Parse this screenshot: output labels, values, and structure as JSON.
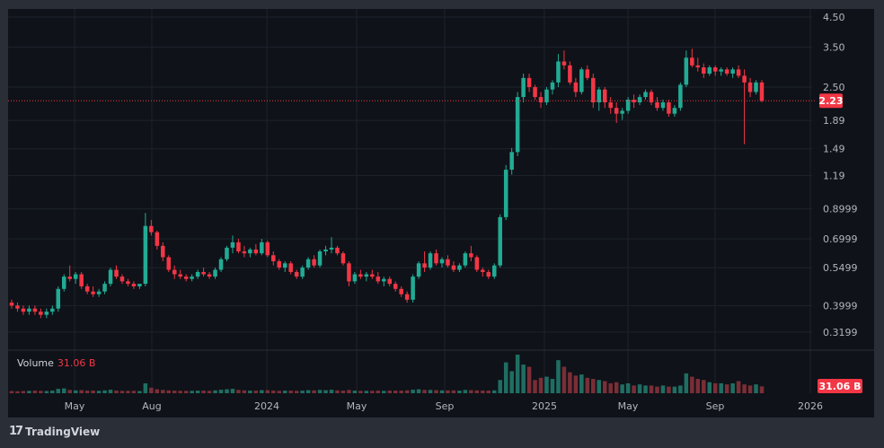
{
  "branding": {
    "logo_text": "TradingView"
  },
  "volume_panel": {
    "label": "Volume",
    "value": "31.06 B",
    "badge": "31.06 B"
  },
  "price_badge": "2.23",
  "colors": {
    "up": "#22ab94",
    "down": "#f23645",
    "up_vol": "#1f6e63",
    "down_vol": "#7a2e36",
    "bg": "#0f1218",
    "grid": "#1e222d",
    "text": "#b2b5be"
  },
  "chart_data": {
    "type": "candlestick",
    "scale": "log",
    "y_ticks": [
      "4.50",
      "3.50",
      "2.50",
      "1.89",
      "1.49",
      "1.19",
      "0.8999",
      "0.6999",
      "0.5499",
      "0.3999",
      "0.3199"
    ],
    "x_ticks": [
      "May",
      "Aug",
      "2024",
      "May",
      "Sep",
      "2025",
      "May",
      "Sep",
      "2026"
    ],
    "last_price": 2.23,
    "candles": [
      [
        0.41,
        0.42,
        0.39,
        0.4
      ],
      [
        0.4,
        0.41,
        0.38,
        0.39
      ],
      [
        0.39,
        0.4,
        0.37,
        0.38
      ],
      [
        0.38,
        0.4,
        0.37,
        0.39
      ],
      [
        0.39,
        0.4,
        0.37,
        0.38
      ],
      [
        0.38,
        0.39,
        0.36,
        0.37
      ],
      [
        0.37,
        0.39,
        0.36,
        0.38
      ],
      [
        0.38,
        0.4,
        0.37,
        0.39
      ],
      [
        0.39,
        0.47,
        0.38,
        0.46
      ],
      [
        0.46,
        0.52,
        0.45,
        0.51
      ],
      [
        0.51,
        0.56,
        0.49,
        0.5
      ],
      [
        0.5,
        0.53,
        0.48,
        0.52
      ],
      [
        0.52,
        0.53,
        0.46,
        0.47
      ],
      [
        0.47,
        0.48,
        0.44,
        0.45
      ],
      [
        0.45,
        0.47,
        0.43,
        0.44
      ],
      [
        0.44,
        0.46,
        0.43,
        0.45
      ],
      [
        0.45,
        0.49,
        0.44,
        0.48
      ],
      [
        0.48,
        0.55,
        0.47,
        0.54
      ],
      [
        0.54,
        0.56,
        0.5,
        0.51
      ],
      [
        0.51,
        0.52,
        0.48,
        0.49
      ],
      [
        0.49,
        0.5,
        0.47,
        0.48
      ],
      [
        0.48,
        0.49,
        0.46,
        0.47
      ],
      [
        0.47,
        0.48,
        0.46,
        0.48
      ],
      [
        0.48,
        0.87,
        0.47,
        0.78
      ],
      [
        0.78,
        0.82,
        0.72,
        0.74
      ],
      [
        0.74,
        0.75,
        0.64,
        0.66
      ],
      [
        0.66,
        0.68,
        0.58,
        0.6
      ],
      [
        0.6,
        0.61,
        0.53,
        0.54
      ],
      [
        0.54,
        0.56,
        0.5,
        0.52
      ],
      [
        0.52,
        0.54,
        0.5,
        0.51
      ],
      [
        0.51,
        0.52,
        0.49,
        0.5
      ],
      [
        0.5,
        0.52,
        0.49,
        0.51
      ],
      [
        0.51,
        0.54,
        0.5,
        0.53
      ],
      [
        0.53,
        0.55,
        0.51,
        0.52
      ],
      [
        0.52,
        0.53,
        0.5,
        0.51
      ],
      [
        0.51,
        0.55,
        0.5,
        0.54
      ],
      [
        0.54,
        0.6,
        0.53,
        0.59
      ],
      [
        0.59,
        0.66,
        0.58,
        0.65
      ],
      [
        0.65,
        0.72,
        0.62,
        0.68
      ],
      [
        0.68,
        0.7,
        0.62,
        0.63
      ],
      [
        0.63,
        0.66,
        0.6,
        0.62
      ],
      [
        0.62,
        0.65,
        0.6,
        0.64
      ],
      [
        0.64,
        0.67,
        0.61,
        0.62
      ],
      [
        0.62,
        0.7,
        0.61,
        0.68
      ],
      [
        0.68,
        0.69,
        0.6,
        0.61
      ],
      [
        0.61,
        0.63,
        0.56,
        0.58
      ],
      [
        0.58,
        0.59,
        0.54,
        0.55
      ],
      [
        0.55,
        0.58,
        0.53,
        0.57
      ],
      [
        0.57,
        0.58,
        0.52,
        0.53
      ],
      [
        0.53,
        0.54,
        0.5,
        0.51
      ],
      [
        0.51,
        0.56,
        0.5,
        0.55
      ],
      [
        0.55,
        0.6,
        0.54,
        0.59
      ],
      [
        0.59,
        0.61,
        0.55,
        0.56
      ],
      [
        0.56,
        0.64,
        0.55,
        0.63
      ],
      [
        0.63,
        0.66,
        0.61,
        0.64
      ],
      [
        0.64,
        0.71,
        0.62,
        0.65
      ],
      [
        0.65,
        0.66,
        0.61,
        0.62
      ],
      [
        0.62,
        0.63,
        0.56,
        0.57
      ],
      [
        0.57,
        0.58,
        0.47,
        0.49
      ],
      [
        0.49,
        0.53,
        0.48,
        0.52
      ],
      [
        0.52,
        0.54,
        0.5,
        0.51
      ],
      [
        0.51,
        0.53,
        0.49,
        0.52
      ],
      [
        0.52,
        0.54,
        0.5,
        0.51
      ],
      [
        0.51,
        0.53,
        0.48,
        0.49
      ],
      [
        0.49,
        0.51,
        0.47,
        0.5
      ],
      [
        0.5,
        0.51,
        0.47,
        0.48
      ],
      [
        0.48,
        0.49,
        0.45,
        0.46
      ],
      [
        0.46,
        0.47,
        0.43,
        0.44
      ],
      [
        0.44,
        0.45,
        0.41,
        0.42
      ],
      [
        0.42,
        0.52,
        0.41,
        0.51
      ],
      [
        0.51,
        0.58,
        0.5,
        0.57
      ],
      [
        0.57,
        0.63,
        0.53,
        0.55
      ],
      [
        0.55,
        0.63,
        0.54,
        0.62
      ],
      [
        0.62,
        0.64,
        0.56,
        0.57
      ],
      [
        0.57,
        0.6,
        0.55,
        0.59
      ],
      [
        0.59,
        0.61,
        0.55,
        0.56
      ],
      [
        0.56,
        0.58,
        0.53,
        0.54
      ],
      [
        0.54,
        0.57,
        0.53,
        0.56
      ],
      [
        0.56,
        0.63,
        0.55,
        0.62
      ],
      [
        0.62,
        0.66,
        0.58,
        0.6
      ],
      [
        0.6,
        0.61,
        0.53,
        0.54
      ],
      [
        0.54,
        0.55,
        0.51,
        0.53
      ],
      [
        0.53,
        0.54,
        0.5,
        0.51
      ],
      [
        0.51,
        0.57,
        0.5,
        0.56
      ],
      [
        0.56,
        0.86,
        0.55,
        0.84
      ],
      [
        0.84,
        1.3,
        0.82,
        1.25
      ],
      [
        1.25,
        1.5,
        1.2,
        1.45
      ],
      [
        1.45,
        2.4,
        1.4,
        2.3
      ],
      [
        2.3,
        2.8,
        2.2,
        2.7
      ],
      [
        2.7,
        2.8,
        2.4,
        2.5
      ],
      [
        2.5,
        2.55,
        2.25,
        2.3
      ],
      [
        2.3,
        2.4,
        2.1,
        2.2
      ],
      [
        2.2,
        2.5,
        2.15,
        2.45
      ],
      [
        2.45,
        2.65,
        2.35,
        2.6
      ],
      [
        2.6,
        3.3,
        2.5,
        3.1
      ],
      [
        3.1,
        3.4,
        2.9,
        3.0
      ],
      [
        3.0,
        3.1,
        2.55,
        2.6
      ],
      [
        2.6,
        2.7,
        2.3,
        2.4
      ],
      [
        2.4,
        2.95,
        2.35,
        2.9
      ],
      [
        2.9,
        3.0,
        2.65,
        2.7
      ],
      [
        2.7,
        2.8,
        2.1,
        2.2
      ],
      [
        2.2,
        2.5,
        2.05,
        2.45
      ],
      [
        2.45,
        2.5,
        2.1,
        2.2
      ],
      [
        2.2,
        2.3,
        2.0,
        2.1
      ],
      [
        2.1,
        2.2,
        1.85,
        2.0
      ],
      [
        2.0,
        2.1,
        1.9,
        2.05
      ],
      [
        2.05,
        2.3,
        2.0,
        2.25
      ],
      [
        2.25,
        2.35,
        2.1,
        2.2
      ],
      [
        2.2,
        2.35,
        2.15,
        2.3
      ],
      [
        2.3,
        2.45,
        2.25,
        2.4
      ],
      [
        2.4,
        2.45,
        2.15,
        2.2
      ],
      [
        2.2,
        2.3,
        2.05,
        2.1
      ],
      [
        2.1,
        2.25,
        2.05,
        2.2
      ],
      [
        2.2,
        2.25,
        1.95,
        2.0
      ],
      [
        2.0,
        2.15,
        1.95,
        2.1
      ],
      [
        2.1,
        2.6,
        2.05,
        2.55
      ],
      [
        2.55,
        3.4,
        2.5,
        3.2
      ],
      [
        3.2,
        3.45,
        2.95,
        3.0
      ],
      [
        3.0,
        3.2,
        2.85,
        2.95
      ],
      [
        2.95,
        3.05,
        2.7,
        2.8
      ],
      [
        2.8,
        3.0,
        2.75,
        2.95
      ],
      [
        2.95,
        3.0,
        2.75,
        2.85
      ],
      [
        2.85,
        2.95,
        2.75,
        2.9
      ],
      [
        2.9,
        2.95,
        2.75,
        2.8
      ],
      [
        2.8,
        2.95,
        2.7,
        2.9
      ],
      [
        2.9,
        3.0,
        2.7,
        2.75
      ],
      [
        2.75,
        2.9,
        1.55,
        2.6
      ],
      [
        2.6,
        2.7,
        2.3,
        2.4
      ],
      [
        2.4,
        2.65,
        2.35,
        2.6
      ],
      [
        2.6,
        2.65,
        2.2,
        2.23
      ]
    ],
    "volume": [
      0.1,
      0.09,
      0.1,
      0.11,
      0.12,
      0.11,
      0.1,
      0.12,
      0.2,
      0.22,
      0.15,
      0.13,
      0.14,
      0.12,
      0.12,
      0.11,
      0.13,
      0.16,
      0.12,
      0.11,
      0.11,
      0.11,
      0.1,
      0.45,
      0.25,
      0.18,
      0.15,
      0.13,
      0.12,
      0.11,
      0.11,
      0.11,
      0.12,
      0.12,
      0.11,
      0.13,
      0.16,
      0.18,
      0.2,
      0.15,
      0.13,
      0.12,
      0.12,
      0.14,
      0.14,
      0.12,
      0.11,
      0.12,
      0.12,
      0.11,
      0.12,
      0.14,
      0.13,
      0.15,
      0.14,
      0.16,
      0.13,
      0.12,
      0.15,
      0.12,
      0.11,
      0.11,
      0.11,
      0.12,
      0.11,
      0.12,
      0.12,
      0.12,
      0.13,
      0.16,
      0.18,
      0.15,
      0.15,
      0.14,
      0.13,
      0.13,
      0.13,
      0.12,
      0.15,
      0.14,
      0.13,
      0.12,
      0.12,
      0.13,
      0.6,
      1.4,
      1.0,
      1.75,
      1.3,
      1.2,
      0.6,
      0.7,
      0.75,
      0.65,
      1.5,
      1.2,
      0.95,
      0.8,
      0.85,
      0.7,
      0.65,
      0.6,
      0.55,
      0.45,
      0.5,
      0.4,
      0.45,
      0.35,
      0.4,
      0.35,
      0.35,
      0.3,
      0.35,
      0.3,
      0.3,
      0.35,
      0.9,
      0.75,
      0.65,
      0.6,
      0.5,
      0.45,
      0.45,
      0.4,
      0.45,
      0.55,
      0.4,
      0.35,
      0.4,
      0.31
    ]
  }
}
